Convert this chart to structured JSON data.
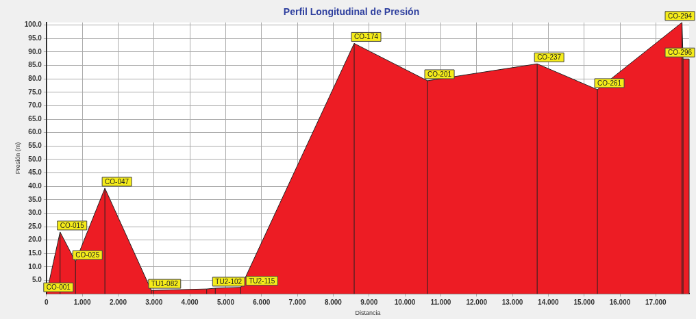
{
  "chart_data": {
    "type": "area",
    "title": "Perfil Longitudinal de Presión",
    "xlabel": "Distancia",
    "ylabel": "Presión (m)",
    "x": [
      0,
      0.38,
      0.81,
      1.63,
      2.925,
      2.99,
      4.47,
      4.71,
      5.42,
      8.585,
      10.63,
      13.69,
      15.37,
      17.73,
      17.76,
      17.93
    ],
    "values": [
      0,
      23,
      12,
      39.3,
      1.3,
      1.3,
      1.8,
      2.1,
      2.4,
      93.2,
      79.3,
      85.6,
      76,
      101,
      87.4,
      87.4
    ],
    "color": "#ed1c24",
    "xlim": [
      0,
      17.93
    ],
    "xticks": [
      {
        "value": 0,
        "label": "0"
      },
      {
        "value": 1,
        "label": "1.000"
      },
      {
        "value": 2,
        "label": "2.000"
      },
      {
        "value": 3,
        "label": "3.000"
      },
      {
        "value": 4,
        "label": "4.000"
      },
      {
        "value": 5,
        "label": "5.000"
      },
      {
        "value": 6,
        "label": "6.000"
      },
      {
        "value": 7,
        "label": "7.000"
      },
      {
        "value": 8,
        "label": "8.000"
      },
      {
        "value": 9,
        "label": "9.000"
      },
      {
        "value": 10,
        "label": "10.000"
      },
      {
        "value": 11,
        "label": "11.000"
      },
      {
        "value": 12,
        "label": "12.000"
      },
      {
        "value": 13,
        "label": "13.000"
      },
      {
        "value": 14,
        "label": "14.000"
      },
      {
        "value": 15,
        "label": "15.000"
      },
      {
        "value": 16,
        "label": "16.000"
      },
      {
        "value": 17,
        "label": "17.000"
      }
    ],
    "ylim": [
      0,
      101
    ],
    "yticks": [
      {
        "value": 5,
        "label": "5.0"
      },
      {
        "value": 10,
        "label": "10.0"
      },
      {
        "value": 15,
        "label": "15.0"
      },
      {
        "value": 20,
        "label": "20.0"
      },
      {
        "value": 25,
        "label": "25.0"
      },
      {
        "value": 30,
        "label": "30.0"
      },
      {
        "value": 35,
        "label": "35.0"
      },
      {
        "value": 40,
        "label": "40.0"
      },
      {
        "value": 45,
        "label": "45.0"
      },
      {
        "value": 50,
        "label": "50.0"
      },
      {
        "value": 55,
        "label": "55.0"
      },
      {
        "value": 60,
        "label": "60.0"
      },
      {
        "value": 65,
        "label": "65.0"
      },
      {
        "value": 70,
        "label": "70.0"
      },
      {
        "value": 75,
        "label": "75.0"
      },
      {
        "value": 80,
        "label": "80.0"
      },
      {
        "value": 85,
        "label": "85.0"
      },
      {
        "value": 90,
        "label": "90.0"
      },
      {
        "value": 95,
        "label": "95.0"
      },
      {
        "value": 100,
        "label": "100.0"
      }
    ],
    "grid": true,
    "legend": false,
    "marker": "none",
    "line_style": "solid",
    "annotations": [
      {
        "text": "CO-001",
        "x": 0,
        "y": 0
      },
      {
        "text": "CO-015",
        "x": 0.38,
        "y": 23
      },
      {
        "text": "CO-025",
        "x": 0.81,
        "y": 12
      },
      {
        "text": "CO-047",
        "x": 1.63,
        "y": 39.3
      },
      {
        "text": "TU1-082",
        "x": 2.925,
        "y": 1.3
      },
      {
        "text": "TU2-102",
        "x": 4.71,
        "y": 2.1
      },
      {
        "text": "TU2-115",
        "x": 5.42,
        "y": 2.4
      },
      {
        "text": "CO-174",
        "x": 8.585,
        "y": 93.2
      },
      {
        "text": "CO-201",
        "x": 10.63,
        "y": 79.3
      },
      {
        "text": "CO-237",
        "x": 13.69,
        "y": 85.6
      },
      {
        "text": "CO-261",
        "x": 15.37,
        "y": 76
      },
      {
        "text": "CO-294",
        "x": 17.73,
        "y": 101
      },
      {
        "text": "CO-296",
        "x": 17.76,
        "y": 87.4
      }
    ]
  }
}
